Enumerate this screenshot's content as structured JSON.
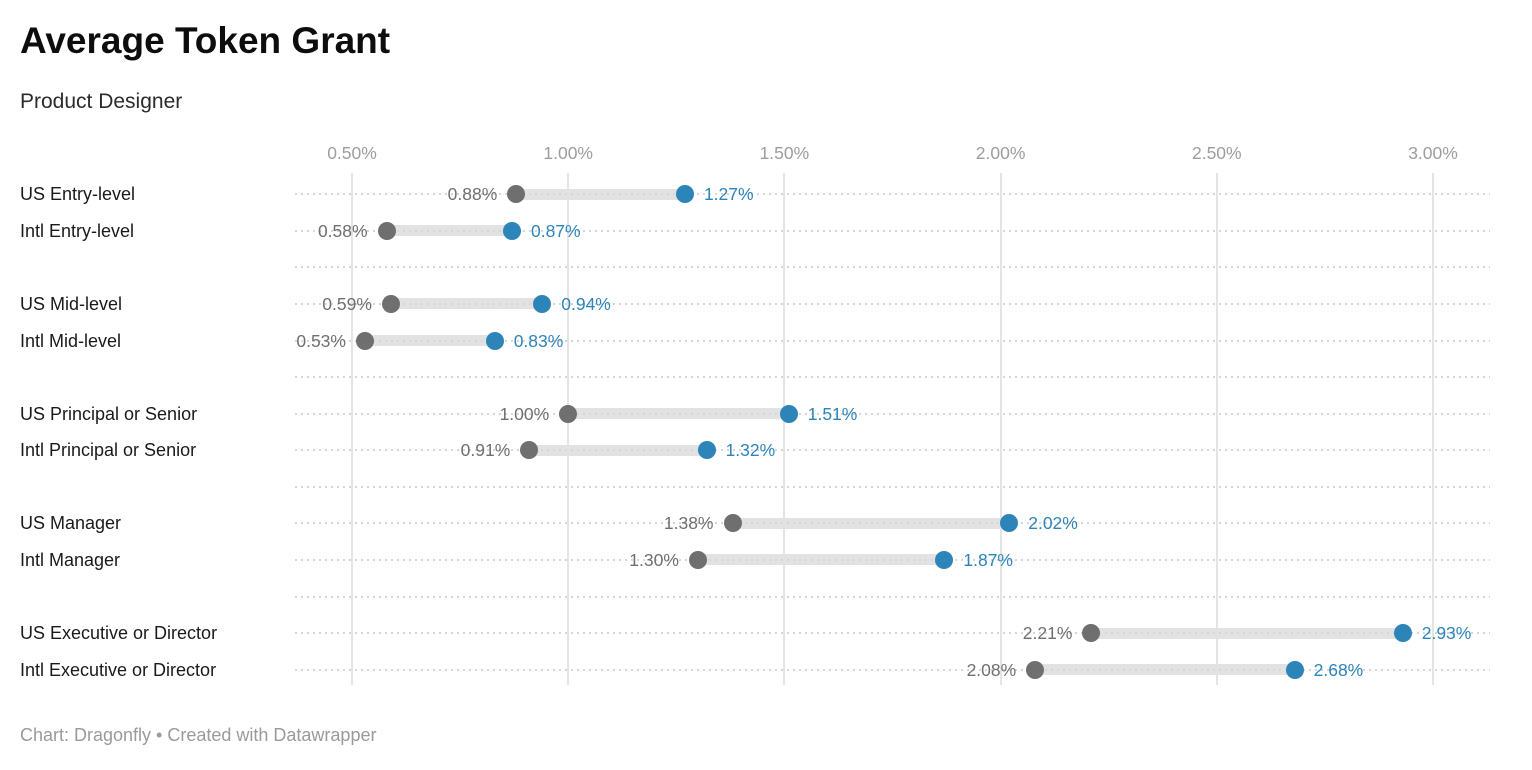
{
  "header": {
    "title": "Average Token Grant",
    "subtitle": "Product Designer"
  },
  "footer": {
    "credit": "Chart: Dragonfly • Created with Datawrapper"
  },
  "chart_data": {
    "type": "dumbbell",
    "title": "Average Token Grant",
    "subtitle": "Product Designer",
    "x_axis": {
      "min": 0.5,
      "max": 3.0,
      "unit": "%",
      "ticks": [
        0.5,
        1.0,
        1.5,
        2.0,
        2.5,
        3.0
      ],
      "tick_labels": [
        "0.50%",
        "1.00%",
        "1.50%",
        "2.00%",
        "2.50%",
        "3.00%"
      ],
      "position": "top",
      "grid": "on"
    },
    "legend": "none",
    "groups": [
      {
        "rows": [
          {
            "label": "US Entry-level",
            "start": 0.88,
            "end": 1.27,
            "start_label": "0.88%",
            "end_label": "1.27%"
          },
          {
            "label": "Intl Entry-level",
            "start": 0.58,
            "end": 0.87,
            "start_label": "0.58%",
            "end_label": "0.87%"
          }
        ]
      },
      {
        "rows": [
          {
            "label": "US Mid-level",
            "start": 0.59,
            "end": 0.94,
            "start_label": "0.59%",
            "end_label": "0.94%"
          },
          {
            "label": "Intl Mid-level",
            "start": 0.53,
            "end": 0.83,
            "start_label": "0.53%",
            "end_label": "0.83%"
          }
        ]
      },
      {
        "rows": [
          {
            "label": "US Principal or Senior",
            "start": 1.0,
            "end": 1.51,
            "start_label": "1.00%",
            "end_label": "1.51%"
          },
          {
            "label": "Intl Principal or Senior",
            "start": 0.91,
            "end": 1.32,
            "start_label": "0.91%",
            "end_label": "1.32%"
          }
        ]
      },
      {
        "rows": [
          {
            "label": "US Manager",
            "start": 1.38,
            "end": 2.02,
            "start_label": "1.38%",
            "end_label": "2.02%"
          },
          {
            "label": "Intl Manager",
            "start": 1.3,
            "end": 1.87,
            "start_label": "1.30%",
            "end_label": "1.87%"
          }
        ]
      },
      {
        "rows": [
          {
            "label": "US Executive or Director",
            "start": 2.21,
            "end": 2.93,
            "start_label": "2.21%",
            "end_label": "2.93%"
          },
          {
            "label": "Intl Executive or Director",
            "start": 2.08,
            "end": 2.68,
            "start_label": "2.08%",
            "end_label": "2.68%"
          }
        ]
      }
    ],
    "colors": {
      "start_dot": "#6f6f6f",
      "start_value": "#6f6f6f",
      "end_dot": "#2d84b8",
      "end_value": "#2d84b8",
      "connector": "#e2e2e2",
      "vertical_gridline": "#e4e4e4",
      "row_dotted_line": "#d6d6d6",
      "axis_label": "#9d9d9d"
    }
  }
}
